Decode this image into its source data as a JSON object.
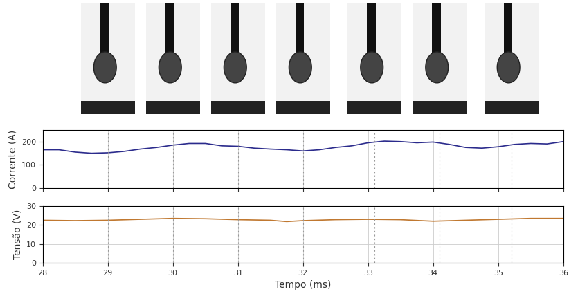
{
  "chart_data": [
    {
      "type": "line",
      "y_label": "Corrente (A)",
      "color": "#2b2b8c",
      "grid": true,
      "x": [
        28,
        28.25,
        28.5,
        28.75,
        29,
        29.25,
        29.5,
        29.75,
        30,
        30.25,
        30.5,
        30.75,
        31,
        31.25,
        31.5,
        31.75,
        32,
        32.25,
        32.5,
        32.75,
        33,
        33.25,
        33.5,
        33.75,
        34,
        34.25,
        34.5,
        34.75,
        35,
        35.25,
        35.5,
        35.75,
        36
      ],
      "values": [
        165,
        165,
        155,
        150,
        152,
        158,
        168,
        175,
        185,
        192,
        192,
        182,
        180,
        172,
        168,
        165,
        160,
        165,
        175,
        182,
        195,
        202,
        200,
        195,
        198,
        188,
        175,
        172,
        178,
        188,
        192,
        190,
        200
      ],
      "xlim": [
        28,
        36
      ],
      "xticks": [
        28,
        29,
        30,
        31,
        32,
        33,
        34,
        35,
        36
      ],
      "tick_labels": "y",
      "ylim": [
        0,
        250
      ],
      "yticks": [
        0,
        100,
        200
      ]
    },
    {
      "type": "line",
      "x_label": "Tempo (ms)",
      "y_label": "Tensão (V)",
      "color": "#c07830",
      "grid": true,
      "x": [
        28,
        28.5,
        29,
        29.5,
        30,
        30.5,
        31,
        31.5,
        31.75,
        32,
        32.5,
        33,
        33.5,
        34,
        34.5,
        35,
        35.5,
        36
      ],
      "values": [
        22.5,
        22.3,
        22.5,
        23,
        23.5,
        23.3,
        22.8,
        22.5,
        21.8,
        22.3,
        22.8,
        23,
        22.8,
        22,
        22.5,
        23,
        23.5,
        23.5
      ],
      "xlim": [
        28,
        36
      ],
      "xticks": [
        28,
        29,
        30,
        31,
        32,
        33,
        34,
        35,
        36
      ],
      "ylim": [
        0,
        30
      ],
      "yticks": [
        0,
        10,
        20,
        30
      ]
    }
  ],
  "frame_times": [
    29,
    30,
    31,
    32,
    33.1,
    34.1,
    35.2
  ]
}
